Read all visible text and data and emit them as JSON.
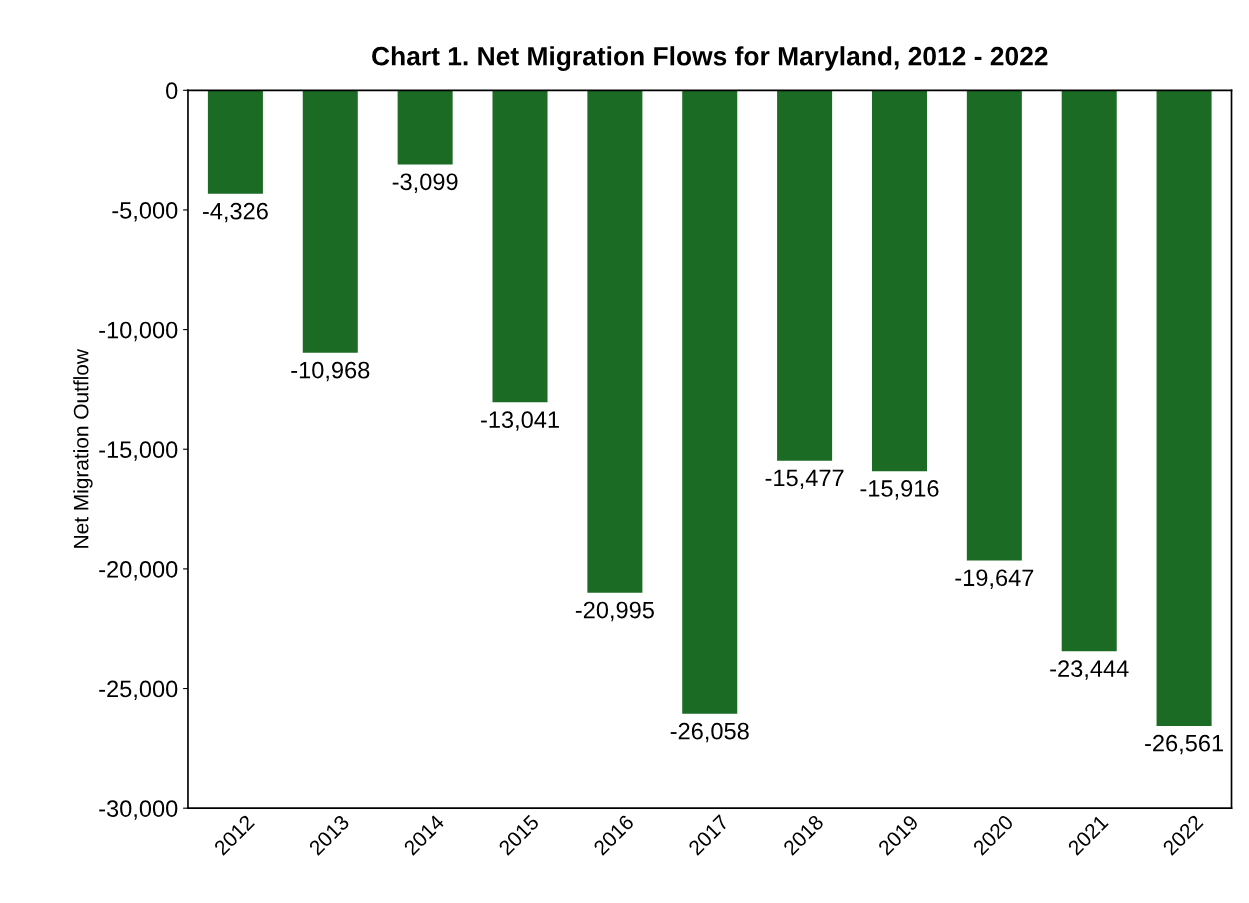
{
  "chart_data": {
    "type": "bar",
    "title": "Chart 1. Net Migration Flows for Maryland, 2012 - 2022",
    "ylabel": "Net Migration Outflow",
    "categories": [
      "2012",
      "2013",
      "2014",
      "2015",
      "2016",
      "2017",
      "2018",
      "2019",
      "2020",
      "2021",
      "2022"
    ],
    "values": [
      -4326,
      -10968,
      -3099,
      -13041,
      -20995,
      -26058,
      -15477,
      -15916,
      -19647,
      -23444,
      -26561
    ],
    "value_labels": [
      "-4,326",
      "-10,968",
      "-3,099",
      "-13,041",
      "-20,995",
      "-26,058",
      "-15,477",
      "-15,916",
      "-19,647",
      "-23,444",
      "-26,561"
    ],
    "color": "#1b6b24",
    "ylim": [
      -30000,
      0
    ],
    "yticks": [
      {
        "value": -30000,
        "label": "-30,000"
      },
      {
        "value": -25000,
        "label": "-25,000"
      },
      {
        "value": -20000,
        "label": "-20,000"
      },
      {
        "value": -15000,
        "label": "-15,000"
      },
      {
        "value": -10000,
        "label": "-10,000"
      },
      {
        "value": -5000,
        "label": "-5,000"
      },
      0
    ],
    "grid": false,
    "legend": false
  }
}
